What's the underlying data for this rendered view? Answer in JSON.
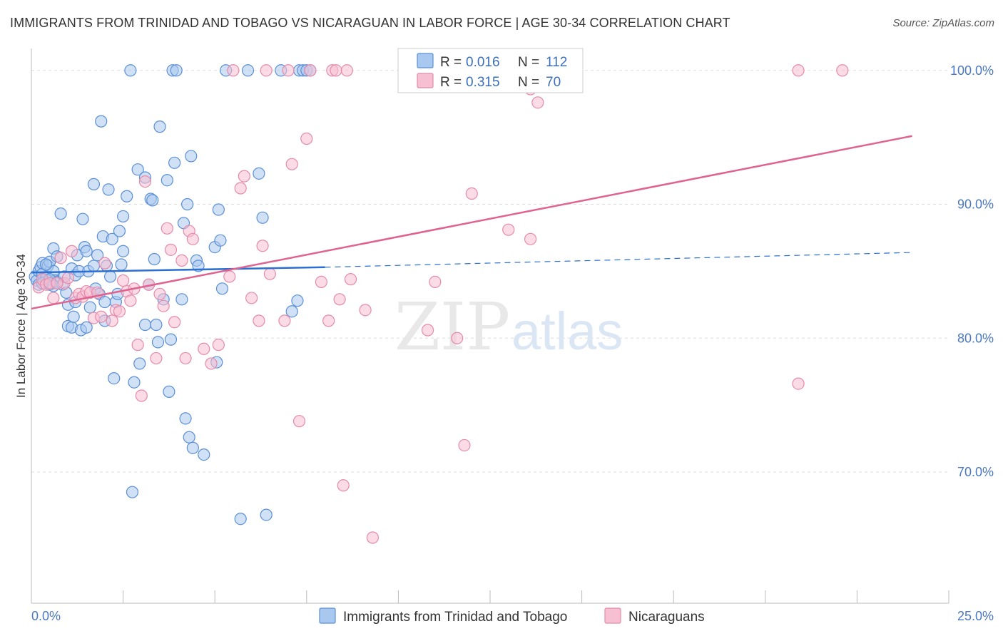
{
  "title": "IMMIGRANTS FROM TRINIDAD AND TOBAGO VS NICARAGUAN IN LABOR FORCE | AGE 30-34 CORRELATION CHART",
  "source": "Source: ZipAtlas.com",
  "watermark": {
    "zip": "ZIP",
    "atlas": "atlas"
  },
  "colors": {
    "blue_fill": "#a9c8ef",
    "blue_stroke": "#5b8fd6",
    "blue_line": "#2a6fd1",
    "pink_fill": "#f7c0d2",
    "pink_stroke": "#e48aaa",
    "pink_line": "#e0628f",
    "grid": "#dddddd",
    "tick_text": "#4a78c2"
  },
  "legend": {
    "rows": [
      {
        "r_label": "R =",
        "r_value": "0.016",
        "n_label": "N =",
        "n_value": "112",
        "series": "blue"
      },
      {
        "r_label": "R =",
        "r_value": "0.315",
        "n_label": "N =",
        "n_value": "70",
        "series": "pink"
      }
    ]
  },
  "chart_data": {
    "type": "scatter",
    "title": "IMMIGRANTS FROM TRINIDAD AND TOBAGO VS NICARAGUAN IN LABOR FORCE | AGE 30-34 CORRELATION CHART",
    "xlabel": "",
    "ylabel": "In Labor Force | Age 30-34",
    "x_tick_labels": [
      "0.0%",
      "25.0%"
    ],
    "y_tick_labels": [
      "70.0%",
      "80.0%",
      "90.0%",
      "100.0%"
    ],
    "xlim": [
      0,
      25
    ],
    "ylim": [
      60.2,
      101.0
    ],
    "grid": true,
    "legend_position": "bottom-center",
    "series": [
      {
        "name": "Immigrants from Trinidad and Tobago",
        "color": "blue",
        "trend": {
          "x0": 0.0,
          "y0": 84.9,
          "x1": 8.0,
          "y1": 85.3,
          "dash_to_x": 24.0,
          "dash_to_y": 86.4
        },
        "points": [
          [
            0.1,
            84.6
          ],
          [
            0.15,
            84.3
          ],
          [
            0.2,
            85.0
          ],
          [
            0.2,
            84.0
          ],
          [
            0.25,
            85.3
          ],
          [
            0.3,
            84.8
          ],
          [
            0.3,
            85.6
          ],
          [
            0.35,
            84.2
          ],
          [
            0.4,
            84.5
          ],
          [
            0.45,
            85.4
          ],
          [
            0.5,
            84.0
          ],
          [
            0.5,
            85.7
          ],
          [
            0.55,
            84.1
          ],
          [
            0.6,
            85.0
          ],
          [
            0.6,
            86.7
          ],
          [
            0.65,
            84.3
          ],
          [
            0.7,
            86.1
          ],
          [
            0.7,
            84.2
          ],
          [
            0.8,
            89.3
          ],
          [
            0.85,
            84.0
          ],
          [
            0.9,
            84.6
          ],
          [
            0.95,
            83.4
          ],
          [
            1.0,
            82.5
          ],
          [
            1.0,
            80.9
          ],
          [
            1.1,
            80.8
          ],
          [
            1.1,
            85.2
          ],
          [
            1.15,
            81.6
          ],
          [
            1.2,
            84.7
          ],
          [
            1.25,
            86.2
          ],
          [
            1.3,
            85.0
          ],
          [
            1.2,
            82.7
          ],
          [
            1.35,
            80.6
          ],
          [
            1.4,
            88.9
          ],
          [
            1.45,
            86.8
          ],
          [
            1.5,
            80.8
          ],
          [
            1.5,
            86.5
          ],
          [
            1.55,
            85.0
          ],
          [
            1.6,
            82.3
          ],
          [
            1.7,
            91.5
          ],
          [
            1.7,
            85.4
          ],
          [
            1.75,
            83.7
          ],
          [
            1.8,
            86.2
          ],
          [
            1.85,
            83.3
          ],
          [
            1.9,
            96.2
          ],
          [
            1.95,
            87.6
          ],
          [
            2.0,
            82.7
          ],
          [
            2.0,
            81.3
          ],
          [
            2.05,
            85.4
          ],
          [
            2.1,
            91.1
          ],
          [
            2.15,
            84.6
          ],
          [
            2.2,
            87.4
          ],
          [
            2.25,
            77.0
          ],
          [
            2.3,
            82.7
          ],
          [
            2.35,
            83.3
          ],
          [
            2.4,
            88.0
          ],
          [
            2.45,
            85.5
          ],
          [
            2.5,
            86.5
          ],
          [
            2.5,
            89.1
          ],
          [
            2.6,
            90.6
          ],
          [
            2.7,
            100.0
          ],
          [
            2.75,
            68.5
          ],
          [
            2.8,
            76.7
          ],
          [
            2.9,
            92.6
          ],
          [
            2.95,
            78.1
          ],
          [
            3.1,
            92.0
          ],
          [
            3.1,
            81.0
          ],
          [
            3.2,
            84.0
          ],
          [
            3.25,
            90.4
          ],
          [
            3.3,
            90.3
          ],
          [
            3.35,
            85.9
          ],
          [
            3.4,
            81.0
          ],
          [
            3.45,
            79.7
          ],
          [
            3.5,
            95.8
          ],
          [
            3.6,
            82.9
          ],
          [
            3.7,
            91.8
          ],
          [
            3.75,
            76.0
          ],
          [
            3.8,
            79.9
          ],
          [
            3.85,
            100.0
          ],
          [
            3.9,
            93.1
          ],
          [
            3.95,
            100.0
          ],
          [
            4.1,
            82.9
          ],
          [
            4.15,
            88.6
          ],
          [
            4.2,
            74.0
          ],
          [
            4.25,
            90.0
          ],
          [
            4.3,
            72.6
          ],
          [
            4.35,
            93.6
          ],
          [
            4.4,
            71.8
          ],
          [
            4.5,
            85.8
          ],
          [
            4.55,
            85.4
          ],
          [
            4.7,
            71.3
          ],
          [
            5.0,
            86.8
          ],
          [
            5.05,
            78.2
          ],
          [
            5.1,
            89.6
          ],
          [
            5.15,
            87.3
          ],
          [
            5.2,
            83.7
          ],
          [
            5.3,
            100.0
          ],
          [
            5.7,
            66.5
          ],
          [
            5.9,
            100.0
          ],
          [
            6.2,
            92.3
          ],
          [
            6.3,
            89.0
          ],
          [
            6.4,
            66.8
          ],
          [
            6.8,
            100.0
          ],
          [
            7.1,
            82.0
          ],
          [
            7.25,
            82.8
          ],
          [
            7.3,
            100.0
          ],
          [
            7.4,
            100.0
          ],
          [
            7.5,
            100.0
          ],
          [
            7.6,
            100.0
          ],
          [
            0.3,
            84.1
          ],
          [
            0.4,
            85.5
          ],
          [
            0.5,
            84.4
          ],
          [
            0.6,
            83.9
          ]
        ]
      },
      {
        "name": "Nicaraguans",
        "color": "pink",
        "trend": {
          "x0": 0.0,
          "y0": 82.2,
          "x1": 24.0,
          "y1": 95.1
        },
        "points": [
          [
            0.2,
            83.8
          ],
          [
            0.3,
            84.4
          ],
          [
            0.4,
            84.0
          ],
          [
            0.5,
            84.1
          ],
          [
            0.6,
            83.0
          ],
          [
            0.8,
            86.0
          ],
          [
            0.9,
            84.1
          ],
          [
            1.0,
            84.5
          ],
          [
            1.1,
            86.5
          ],
          [
            1.2,
            83.0
          ],
          [
            1.3,
            83.3
          ],
          [
            1.4,
            83.1
          ],
          [
            1.5,
            83.5
          ],
          [
            1.6,
            83.4
          ],
          [
            1.7,
            81.5
          ],
          [
            1.8,
            83.4
          ],
          [
            1.9,
            81.6
          ],
          [
            2.0,
            85.6
          ],
          [
            2.2,
            81.3
          ],
          [
            2.3,
            82.1
          ],
          [
            2.4,
            82.0
          ],
          [
            2.5,
            84.3
          ],
          [
            2.6,
            83.5
          ],
          [
            2.7,
            82.8
          ],
          [
            2.8,
            83.7
          ],
          [
            2.9,
            79.5
          ],
          [
            3.0,
            75.7
          ],
          [
            3.1,
            91.7
          ],
          [
            3.2,
            84.0
          ],
          [
            3.4,
            78.5
          ],
          [
            3.5,
            83.3
          ],
          [
            3.6,
            82.4
          ],
          [
            3.7,
            88.2
          ],
          [
            3.8,
            86.6
          ],
          [
            3.9,
            81.2
          ],
          [
            4.1,
            85.8
          ],
          [
            4.2,
            78.5
          ],
          [
            4.3,
            88.0
          ],
          [
            4.4,
            87.4
          ],
          [
            4.7,
            79.2
          ],
          [
            4.9,
            78.1
          ],
          [
            5.1,
            79.5
          ],
          [
            5.4,
            84.6
          ],
          [
            5.7,
            91.2
          ],
          [
            5.8,
            92.1
          ],
          [
            6.0,
            83.0
          ],
          [
            6.2,
            81.3
          ],
          [
            6.3,
            86.9
          ],
          [
            6.5,
            84.8
          ],
          [
            6.9,
            81.3
          ],
          [
            7.1,
            93.0
          ],
          [
            7.3,
            73.8
          ],
          [
            7.5,
            94.9
          ],
          [
            7.9,
            84.2
          ],
          [
            8.1,
            81.3
          ],
          [
            8.4,
            82.9
          ],
          [
            8.5,
            69.0
          ],
          [
            8.7,
            84.4
          ],
          [
            9.1,
            82.1
          ],
          [
            9.3,
            65.1
          ],
          [
            10.8,
            80.6
          ],
          [
            11.0,
            84.2
          ],
          [
            11.6,
            80.0
          ],
          [
            11.8,
            72.0
          ],
          [
            12.0,
            90.8
          ],
          [
            13.0,
            88.1
          ],
          [
            13.6,
            87.4
          ],
          [
            13.8,
            97.6
          ],
          [
            20.9,
            76.6
          ],
          [
            0.7,
            84.1
          ]
        ]
      }
    ],
    "top_pink_points_at_100": [
      5.5,
      6.4,
      7.0,
      7.6,
      8.2,
      8.3,
      8.6,
      10.4,
      11.1,
      20.9,
      22.1
    ],
    "extra_pink_points": [
      [
        10.5,
        98.9
      ],
      [
        13.6,
        98.6
      ]
    ]
  },
  "bottom_legend": [
    {
      "label": "Immigrants from Trinidad and Tobago",
      "series": "blue"
    },
    {
      "label": "Nicaraguans",
      "series": "pink"
    }
  ]
}
